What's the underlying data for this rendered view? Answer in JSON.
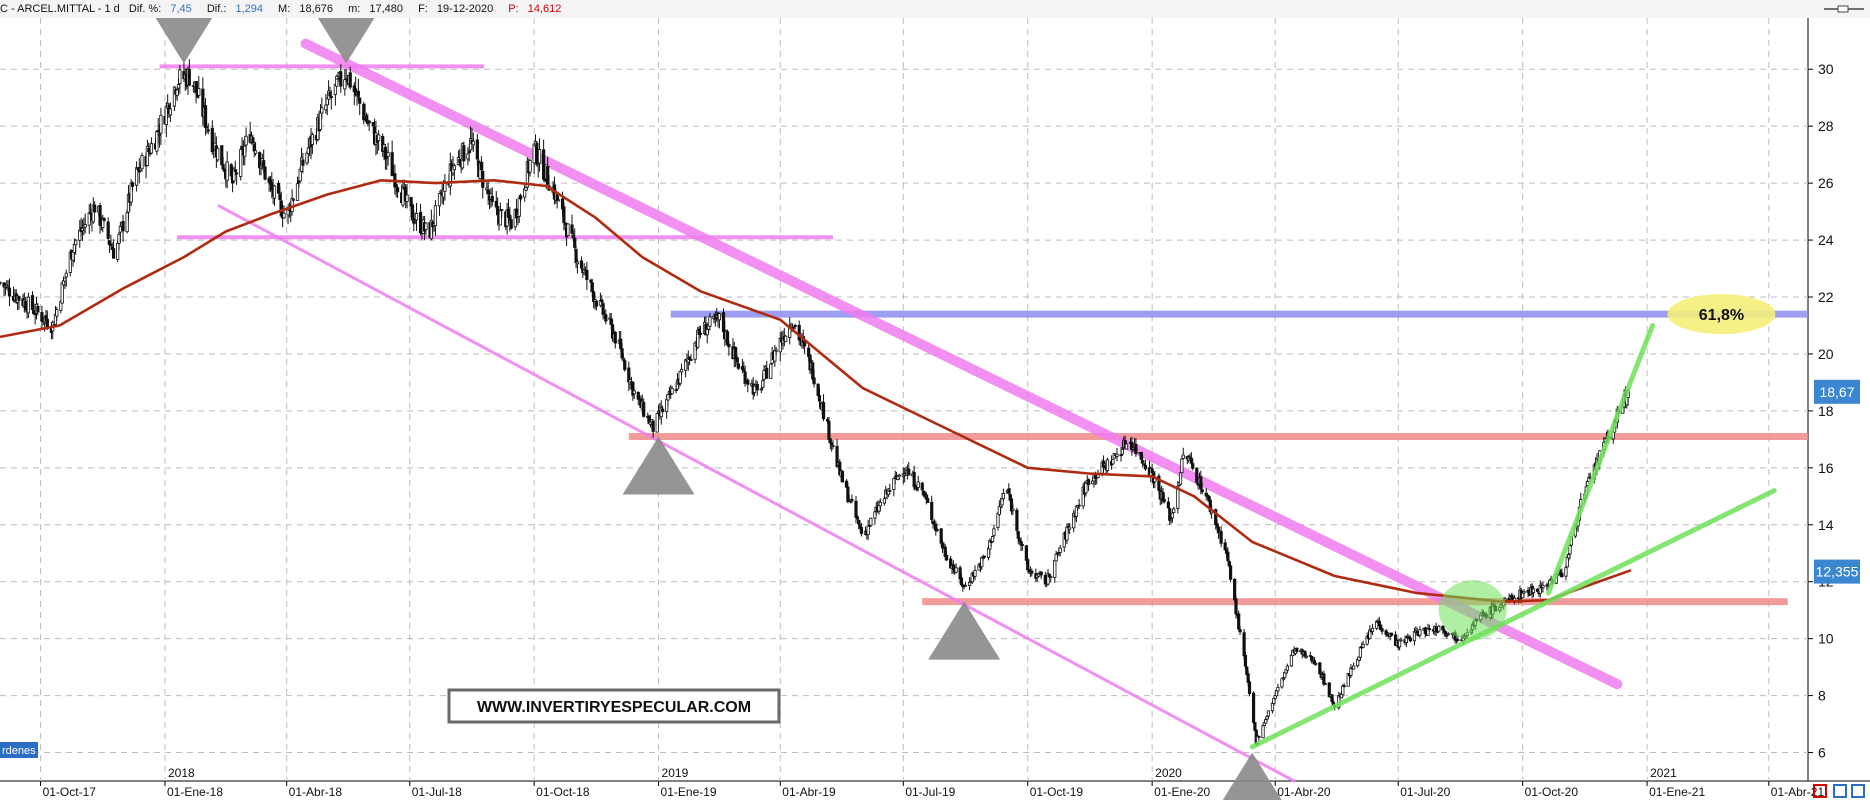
{
  "header": {
    "symbol": "C - ARCEL.MITTAL - 1 d",
    "dif_pct_label": "Dif. %:",
    "dif_pct_value": "7,45",
    "dif_label": "Dif.:",
    "dif_value": "1,294",
    "max_label": "M:",
    "max_value": "18,676",
    "min_label": "m:",
    "min_value": "17,480",
    "date_label": "F:",
    "date_value": "19-12-2020",
    "p_label": "P:",
    "p_value": "14,612"
  },
  "colors": {
    "candles": "#111111",
    "moving_average": "#b02a10",
    "channel": "#ee7cee",
    "support_resistance_red": "#f08a8a",
    "fib_line": "#8c8cf0",
    "uptrend": "#6fe05a",
    "fib_bubble": "#f5f07a",
    "markers": "#8a8a8a",
    "price_tag": "#3a86d0"
  },
  "chart_data": {
    "type": "candlestick",
    "y_range": [
      5,
      31.8
    ],
    "y_ticks": [
      6,
      8,
      10,
      12,
      14,
      16,
      18,
      20,
      22,
      24,
      26,
      28,
      30
    ],
    "x_range": [
      "2017-09-01",
      "2021-04-30"
    ],
    "x_tick_labels": [
      {
        "date": "2017-10-01",
        "label": "01-Oct-17"
      },
      {
        "date": "2018-01-01",
        "label": "01-Ene-18"
      },
      {
        "date": "2018-04-01",
        "label": "01-Abr-18"
      },
      {
        "date": "2018-07-01",
        "label": "01-Jul-18"
      },
      {
        "date": "2018-10-01",
        "label": "01-Oct-18"
      },
      {
        "date": "2019-01-01",
        "label": "01-Ene-19"
      },
      {
        "date": "2019-04-01",
        "label": "01-Abr-19"
      },
      {
        "date": "2019-07-01",
        "label": "01-Jul-19"
      },
      {
        "date": "2019-10-01",
        "label": "01-Oct-19"
      },
      {
        "date": "2020-01-01",
        "label": "01-Ene-20"
      },
      {
        "date": "2020-04-01",
        "label": "01-Abr-20"
      },
      {
        "date": "2020-07-01",
        "label": "01-Jul-20"
      },
      {
        "date": "2020-10-01",
        "label": "01-Oct-20"
      },
      {
        "date": "2021-01-01",
        "label": "01-Ene-21"
      },
      {
        "date": "2021-04-01",
        "label": "01-Abr-21"
      }
    ],
    "year_labels": [
      {
        "date": "2018-01-01",
        "label": "2018"
      },
      {
        "date": "2019-01-01",
        "label": "2019"
      },
      {
        "date": "2020-01-01",
        "label": "2020"
      },
      {
        "date": "2021-01-01",
        "label": "2021"
      }
    ],
    "price_path": [
      [
        "2017-09-01",
        22.5
      ],
      [
        "2017-09-25",
        21.6
      ],
      [
        "2017-10-10",
        21.0
      ],
      [
        "2017-10-25",
        23.8
      ],
      [
        "2017-11-10",
        25.2
      ],
      [
        "2017-11-25",
        23.5
      ],
      [
        "2017-12-10",
        26.2
      ],
      [
        "2017-12-25",
        27.6
      ],
      [
        "2018-01-10",
        29.6
      ],
      [
        "2018-01-20",
        29.8
      ],
      [
        "2018-02-05",
        27.5
      ],
      [
        "2018-02-20",
        26.0
      ],
      [
        "2018-03-05",
        27.8
      ],
      [
        "2018-03-20",
        25.8
      ],
      [
        "2018-04-01",
        24.8
      ],
      [
        "2018-04-15",
        27.0
      ],
      [
        "2018-05-01",
        28.8
      ],
      [
        "2018-05-15",
        29.9
      ],
      [
        "2018-06-01",
        28.0
      ],
      [
        "2018-06-15",
        26.8
      ],
      [
        "2018-07-01",
        25.0
      ],
      [
        "2018-07-15",
        24.2
      ],
      [
        "2018-08-01",
        26.5
      ],
      [
        "2018-08-15",
        27.4
      ],
      [
        "2018-09-01",
        25.0
      ],
      [
        "2018-09-15",
        24.6
      ],
      [
        "2018-10-01",
        27.2
      ],
      [
        "2018-10-15",
        25.8
      ],
      [
        "2018-11-01",
        23.5
      ],
      [
        "2018-11-15",
        22.0
      ],
      [
        "2018-12-01",
        20.5
      ],
      [
        "2018-12-15",
        18.5
      ],
      [
        "2018-12-28",
        17.4
      ],
      [
        "2019-01-15",
        19.0
      ],
      [
        "2019-02-01",
        20.8
      ],
      [
        "2019-02-15",
        21.2
      ],
      [
        "2019-03-01",
        19.6
      ],
      [
        "2019-03-15",
        18.6
      ],
      [
        "2019-03-29",
        20.2
      ],
      [
        "2019-04-10",
        21.2
      ],
      [
        "2019-04-25",
        19.4
      ],
      [
        "2019-05-15",
        15.8
      ],
      [
        "2019-06-01",
        13.6
      ],
      [
        "2019-06-15",
        14.8
      ],
      [
        "2019-07-01",
        16.0
      ],
      [
        "2019-07-15",
        15.2
      ],
      [
        "2019-08-01",
        13.0
      ],
      [
        "2019-08-15",
        11.8
      ],
      [
        "2019-09-01",
        13.0
      ],
      [
        "2019-09-15",
        15.4
      ],
      [
        "2019-10-01",
        12.4
      ],
      [
        "2019-10-15",
        12.0
      ],
      [
        "2019-11-01",
        14.0
      ],
      [
        "2019-11-15",
        15.6
      ],
      [
        "2019-12-01",
        16.2
      ],
      [
        "2019-12-15",
        17.0
      ],
      [
        "2020-01-01",
        15.8
      ],
      [
        "2020-01-15",
        14.2
      ],
      [
        "2020-01-25",
        16.6
      ],
      [
        "2020-02-10",
        15.0
      ],
      [
        "2020-02-25",
        13.0
      ],
      [
        "2020-03-10",
        9.0
      ],
      [
        "2020-03-18",
        6.4
      ],
      [
        "2020-04-01",
        8.0
      ],
      [
        "2020-04-15",
        9.6
      ],
      [
        "2020-05-01",
        9.2
      ],
      [
        "2020-05-15",
        7.6
      ],
      [
        "2020-06-01",
        9.4
      ],
      [
        "2020-06-15",
        10.6
      ],
      [
        "2020-07-01",
        9.8
      ],
      [
        "2020-07-15",
        10.2
      ],
      [
        "2020-08-01",
        10.4
      ],
      [
        "2020-08-15",
        10.0
      ],
      [
        "2020-09-01",
        10.8
      ],
      [
        "2020-09-15",
        11.2
      ],
      [
        "2020-10-01",
        11.6
      ],
      [
        "2020-10-15",
        11.8
      ],
      [
        "2020-11-01",
        12.4
      ],
      [
        "2020-11-12",
        14.6
      ],
      [
        "2020-11-25",
        16.2
      ],
      [
        "2020-12-08",
        17.6
      ],
      [
        "2020-12-18",
        18.67
      ]
    ],
    "moving_average": [
      [
        "2017-09-01",
        20.6
      ],
      [
        "2017-10-15",
        21.0
      ],
      [
        "2017-12-01",
        22.3
      ],
      [
        "2018-01-15",
        23.4
      ],
      [
        "2018-02-15",
        24.3
      ],
      [
        "2018-03-20",
        24.9
      ],
      [
        "2018-05-01",
        25.6
      ],
      [
        "2018-06-10",
        26.1
      ],
      [
        "2018-07-20",
        26.0
      ],
      [
        "2018-09-01",
        26.1
      ],
      [
        "2018-10-10",
        25.9
      ],
      [
        "2018-11-15",
        24.8
      ],
      [
        "2018-12-20",
        23.4
      ],
      [
        "2019-02-01",
        22.2
      ],
      [
        "2019-04-01",
        21.2
      ],
      [
        "2019-06-01",
        18.8
      ],
      [
        "2019-08-01",
        17.4
      ],
      [
        "2019-10-01",
        16.0
      ],
      [
        "2019-11-15",
        15.8
      ],
      [
        "2020-01-01",
        15.7
      ],
      [
        "2020-02-01",
        15.0
      ],
      [
        "2020-03-15",
        13.4
      ],
      [
        "2020-05-15",
        12.2
      ],
      [
        "2020-07-15",
        11.6
      ],
      [
        "2020-09-15",
        11.3
      ],
      [
        "2020-10-20",
        11.35
      ],
      [
        "2020-11-20",
        11.9
      ],
      [
        "2020-12-20",
        12.4
      ]
    ],
    "horizontal_levels": [
      {
        "name": "resistance-top",
        "y": 30.1,
        "from": "2017-12-28",
        "to": "2018-08-25",
        "color": "channel"
      },
      {
        "name": "support-24",
        "y": 24.1,
        "from": "2018-01-10",
        "to": "2019-05-10",
        "color": "channel"
      },
      {
        "name": "fib-618",
        "y": 21.4,
        "from": "2019-01-10",
        "to": "2021-04-30",
        "color": "fib_line"
      },
      {
        "name": "resistance-17",
        "y": 17.1,
        "from": "2018-12-10",
        "to": "2021-04-30",
        "color": "support_resistance_red"
      },
      {
        "name": "support-11-3",
        "y": 11.3,
        "from": "2019-07-15",
        "to": "2021-04-15",
        "color": "support_resistance_red"
      }
    ],
    "trend_lines": [
      {
        "name": "channel-upper",
        "from": [
          "2018-04-15",
          30.9
        ],
        "to": [
          "2020-12-10",
          8.4
        ],
        "color": "channel",
        "width": 10
      },
      {
        "name": "channel-lower",
        "from": [
          "2018-02-10",
          25.2
        ],
        "to": [
          "2020-04-15",
          5.0
        ],
        "color": "channel",
        "width": 3
      },
      {
        "name": "uptrend-long",
        "from": [
          "2020-03-15",
          6.2
        ],
        "to": [
          "2021-04-05",
          15.2
        ],
        "color": "uptrend",
        "width": 5
      },
      {
        "name": "uptrend-steep",
        "from": [
          "2020-10-20",
          11.6
        ],
        "to": [
          "2021-01-05",
          21.0
        ],
        "color": "uptrend",
        "width": 5
      }
    ],
    "markers": [
      {
        "name": "top-1",
        "date": "2018-01-15",
        "y": 30.2,
        "direction": "down"
      },
      {
        "name": "top-2",
        "date": "2018-05-15",
        "y": 30.2,
        "direction": "down"
      },
      {
        "name": "bottom-1",
        "date": "2019-01-01",
        "y": 17.1,
        "direction": "up"
      },
      {
        "name": "bottom-2",
        "date": "2019-08-15",
        "y": 11.3,
        "direction": "up"
      },
      {
        "name": "bottom-3",
        "date": "2020-03-15",
        "y": 6.0,
        "direction": "up"
      }
    ],
    "highlight_circle": {
      "date": "2020-08-25",
      "y": 11.0
    },
    "fib_annotation": {
      "label": "61,8%",
      "date": "2021-02-25",
      "y": 21.4
    },
    "price_tags": [
      {
        "value": "18,67",
        "y": 18.67
      },
      {
        "value": "12,355",
        "y": 12.355
      }
    ],
    "watermark": "WWW.INVERTIRYESPECULAR.COM",
    "bottom_left_tag": "rdenes"
  }
}
